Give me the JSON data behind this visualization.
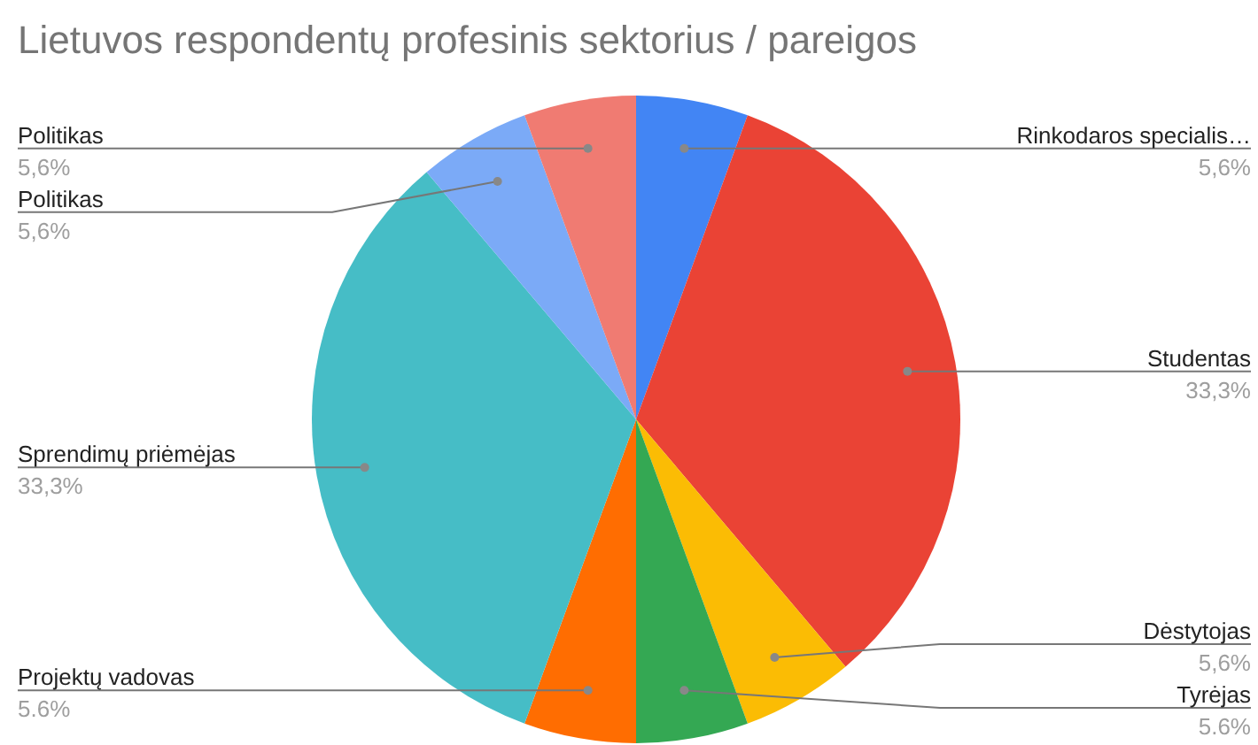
{
  "chart_data": {
    "type": "pie",
    "title": "Lietuvos respondentų profesinis sektorius / pareigos",
    "categories": [
      "Rinkodaros specialis…",
      "Studentas",
      "Dėstytojas",
      "Tyrėjas",
      "Projektų vadovas",
      "Sprendimų priėmėjas",
      "Politikas",
      "Politikas"
    ],
    "values": [
      5.6,
      33.3,
      5.6,
      5.6,
      5.6,
      33.3,
      5.6,
      5.6
    ],
    "value_labels": [
      "5,6%",
      "33,3%",
      "5,6%",
      "5.6%",
      "5.6%",
      "33,3%",
      "5,6%",
      "5,6%"
    ],
    "colors": [
      "#4285f4",
      "#ea4335",
      "#fbbc04",
      "#34a853",
      "#ff6d01",
      "#46bdc6",
      "#7baaf7",
      "#f07b72"
    ],
    "legend": false
  }
}
